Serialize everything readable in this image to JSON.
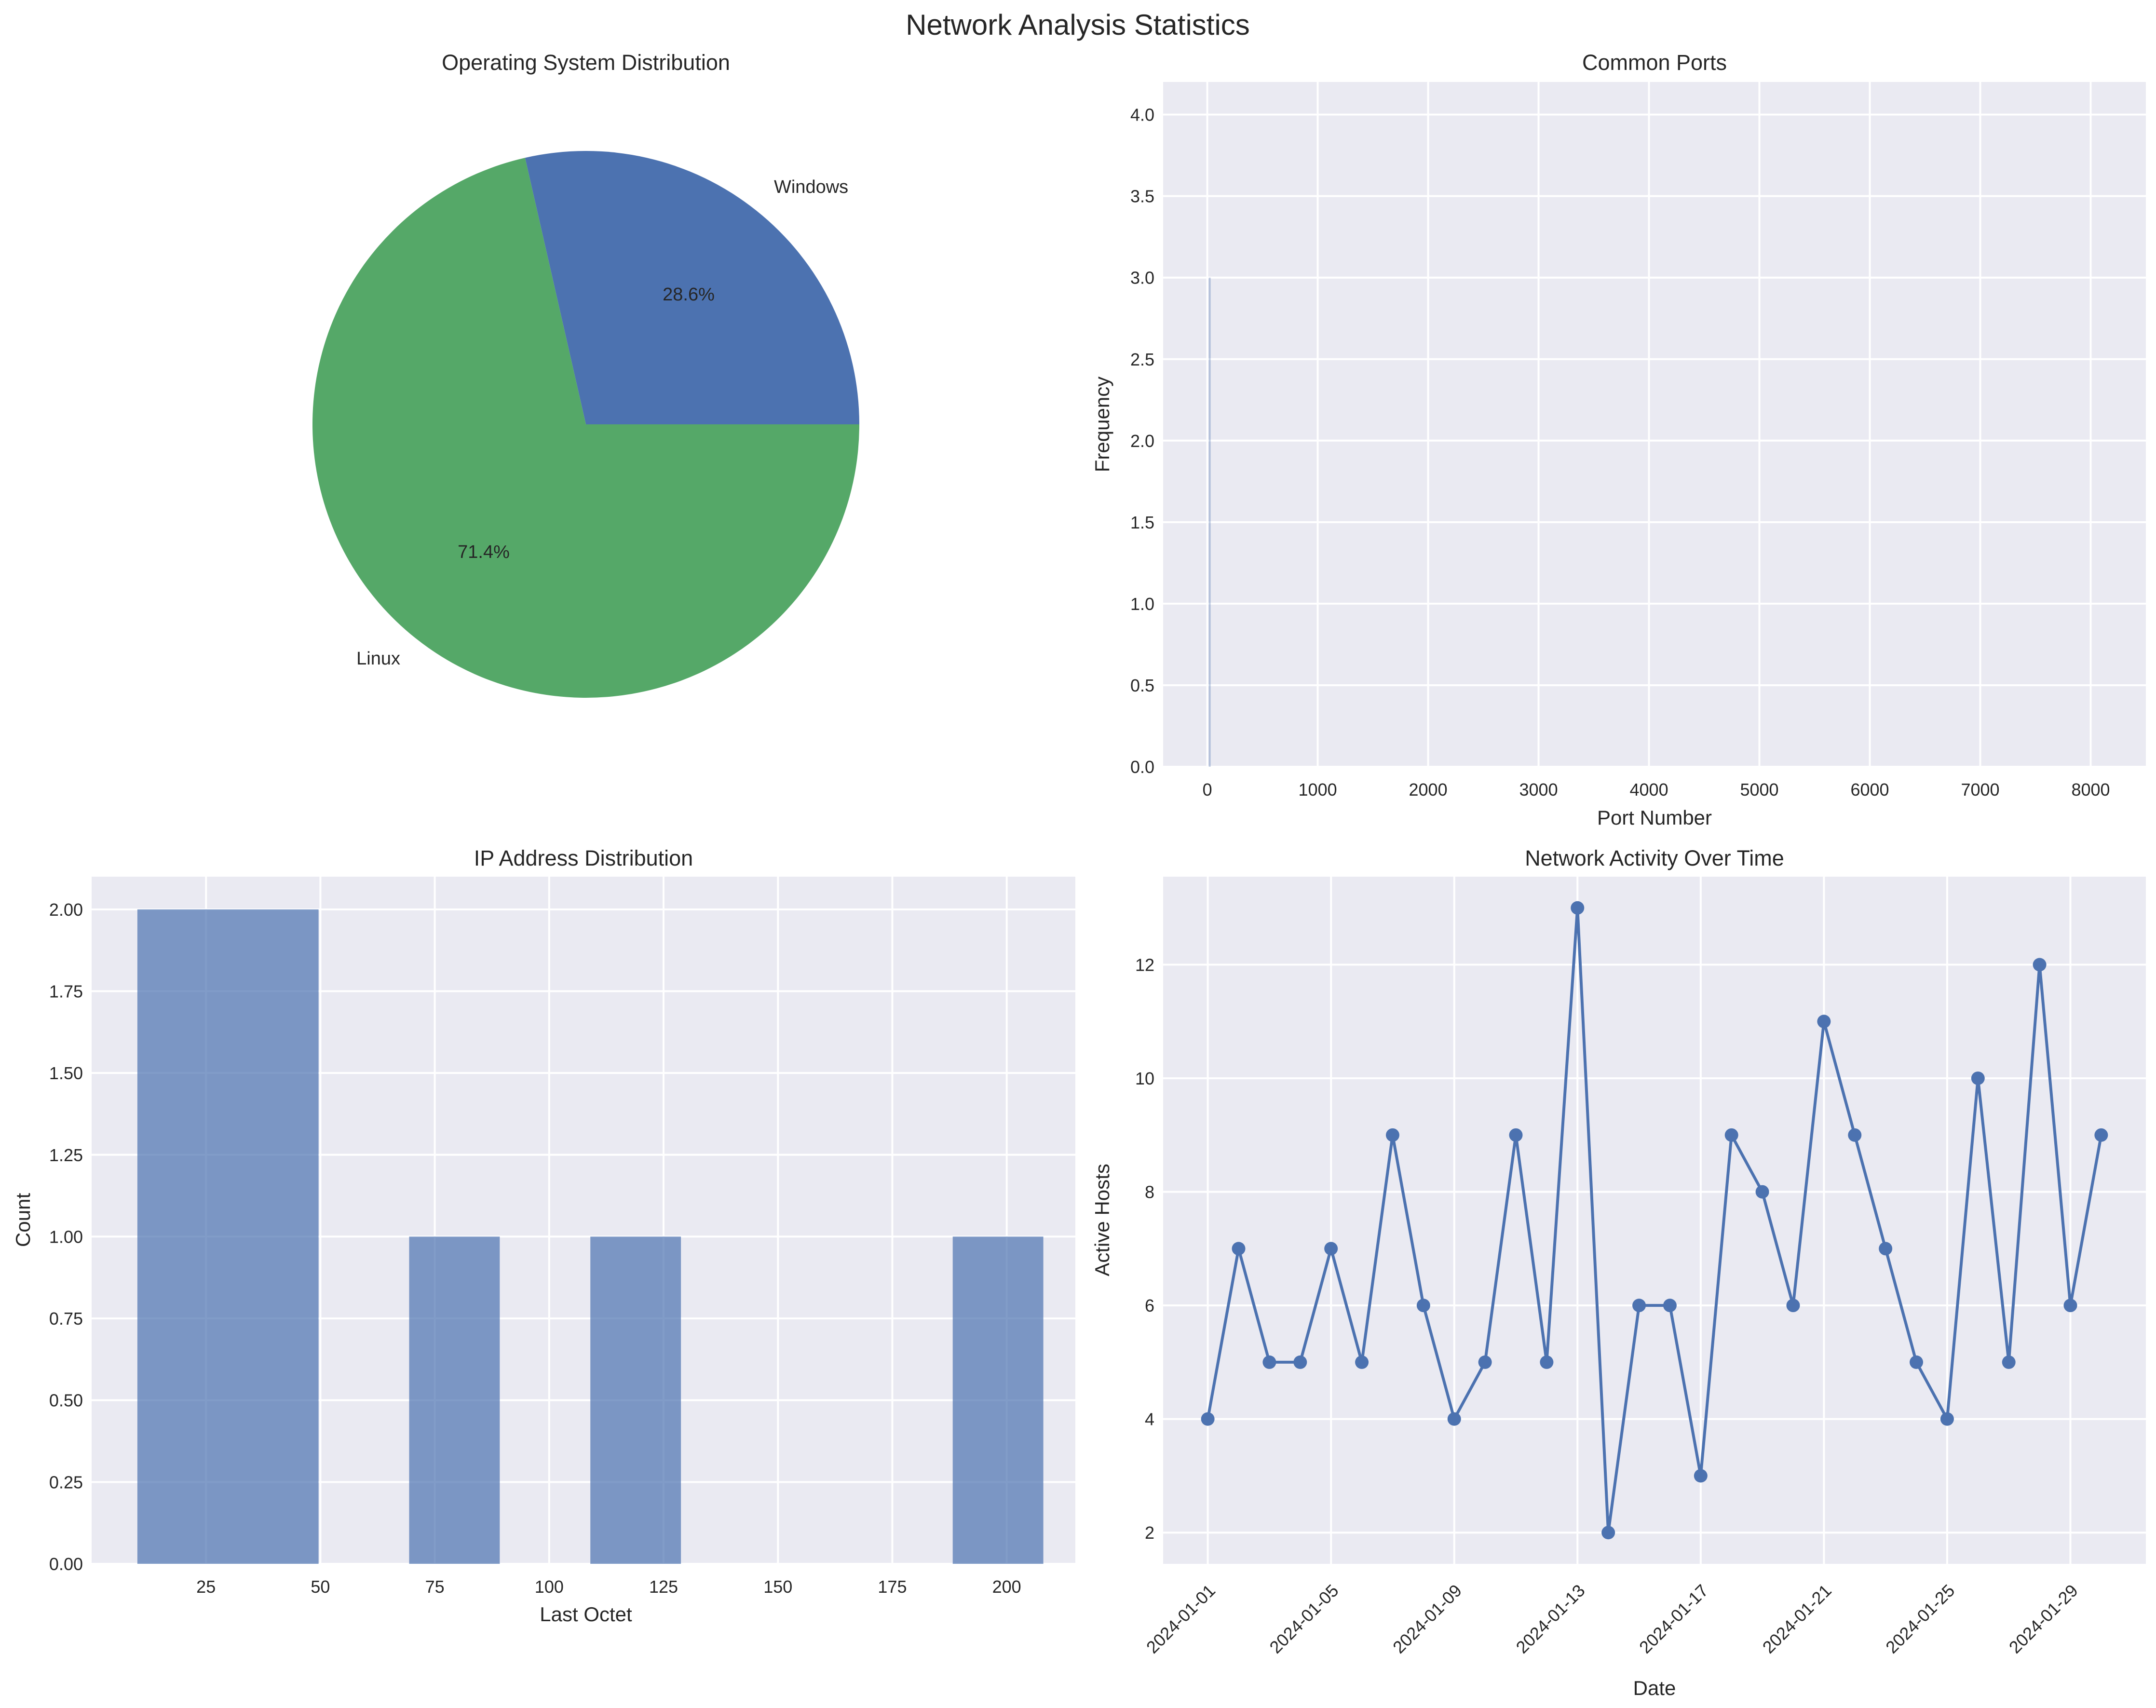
{
  "figure": {
    "suptitle": "Network Analysis Statistics"
  },
  "style": {
    "axes_bg": "#EAEAF2",
    "grid": "#FFFFFF",
    "text": "#262626",
    "windows_color": "#4C72B0",
    "linux_color": "#55A868",
    "hist_color": "#4C72B0",
    "hist_alpha": 0.7,
    "port_color": "#4C72B0",
    "line_color": "#4C72B0"
  },
  "chart_data": [
    {
      "type": "pie",
      "title": "Operating System Distribution",
      "labels": [
        "Windows",
        "Linux"
      ],
      "values": [
        2,
        5
      ],
      "pct_labels": [
        "28.6%",
        "71.4%"
      ]
    },
    {
      "type": "bar",
      "title": "Common Ports",
      "xlabel": "Port Number",
      "ylabel": "Frequency",
      "xlim": [
        -400,
        8500
      ],
      "ylim": [
        0,
        4.2
      ],
      "xticks": [
        0,
        1000,
        2000,
        3000,
        4000,
        5000,
        6000,
        7000,
        8000
      ],
      "yticks": [
        0.0,
        0.5,
        1.0,
        1.5,
        2.0,
        2.5,
        3.0,
        3.5,
        4.0
      ],
      "ytick_labels": [
        "0.0",
        "0.5",
        "1.0",
        "1.5",
        "2.0",
        "2.5",
        "3.0",
        "3.5",
        "4.0"
      ],
      "bars": [
        {
          "x": 22,
          "value": 3
        }
      ]
    },
    {
      "type": "bar",
      "title": "IP Address Distribution",
      "xlabel": "Last Octet",
      "ylabel": "Count",
      "xlim": [
        0,
        215
      ],
      "ylim": [
        0,
        2.1
      ],
      "xticks": [
        25,
        50,
        75,
        100,
        125,
        150,
        175,
        200
      ],
      "yticks": [
        0,
        0.25,
        0.5,
        0.75,
        1.0,
        1.25,
        1.5,
        1.75,
        2.0
      ],
      "ytick_labels": [
        "0.00",
        "0.25",
        "0.50",
        "0.75",
        "1.00",
        "1.25",
        "1.50",
        "1.75",
        "2.00"
      ],
      "bins": [
        {
          "start": 10,
          "end": 49.6,
          "value": 2
        },
        {
          "start": 69.4,
          "end": 89.2,
          "value": 1
        },
        {
          "start": 109,
          "end": 128.8,
          "value": 1
        },
        {
          "start": 188.2,
          "end": 208,
          "value": 1
        }
      ]
    },
    {
      "type": "line",
      "title": "Network Activity Over Time",
      "xlabel": "Date",
      "ylabel": "Active Hosts",
      "ylim": [
        1.45,
        13.55
      ],
      "yticks": [
        2,
        4,
        6,
        8,
        10,
        12
      ],
      "x": [
        "2024-01-01",
        "2024-01-02",
        "2024-01-03",
        "2024-01-04",
        "2024-01-05",
        "2024-01-06",
        "2024-01-07",
        "2024-01-08",
        "2024-01-09",
        "2024-01-10",
        "2024-01-11",
        "2024-01-12",
        "2024-01-13",
        "2024-01-14",
        "2024-01-15",
        "2024-01-16",
        "2024-01-17",
        "2024-01-18",
        "2024-01-19",
        "2024-01-20",
        "2024-01-21",
        "2024-01-22",
        "2024-01-23",
        "2024-01-24",
        "2024-01-25",
        "2024-01-26",
        "2024-01-27",
        "2024-01-28",
        "2024-01-29",
        "2024-01-30"
      ],
      "xtick_labels": [
        "2024-01-01",
        "2024-01-05",
        "2024-01-09",
        "2024-01-13",
        "2024-01-17",
        "2024-01-21",
        "2024-01-25",
        "2024-01-29"
      ],
      "values": [
        4,
        7,
        5,
        5,
        7,
        5,
        9,
        6,
        4,
        5,
        9,
        5,
        13,
        2,
        6,
        6,
        3,
        9,
        8,
        6,
        11,
        9,
        7,
        5,
        4,
        10,
        5,
        12,
        6,
        9
      ]
    }
  ]
}
